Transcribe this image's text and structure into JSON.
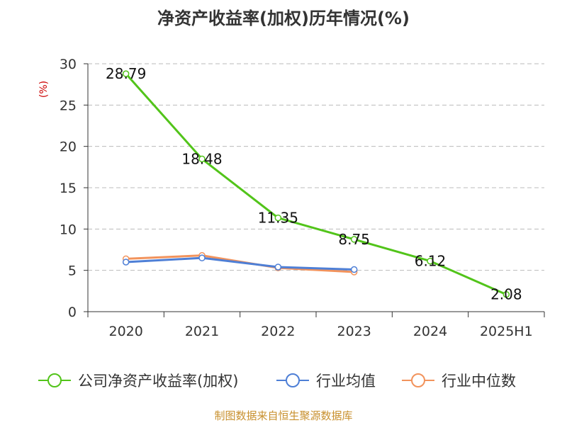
{
  "chart_data": {
    "type": "line",
    "title": "净资产收益率(加权)历年情况(%)",
    "ylabel": "(%)",
    "xlabel": "",
    "categories": [
      "2020",
      "2021",
      "2022",
      "2023",
      "2024",
      "2025H1"
    ],
    "ylim": [
      0,
      30
    ],
    "yticks": [
      0,
      5,
      10,
      15,
      20,
      25,
      30
    ],
    "grid": true,
    "legend_position": "bottom",
    "series": [
      {
        "name": "公司净资产收益率(加权)",
        "color": "#52c41a",
        "values": [
          28.79,
          18.48,
          11.35,
          8.75,
          6.12,
          2.08
        ],
        "data_labels": [
          "28.79",
          "18.48",
          "11.35",
          "8.75",
          "6.12",
          "2.08"
        ]
      },
      {
        "name": "行业均值",
        "color": "#4e7fd6",
        "values": [
          6.0,
          6.5,
          5.4,
          5.1,
          null,
          null
        ]
      },
      {
        "name": "行业中位数",
        "color": "#f2935c",
        "values": [
          6.4,
          6.8,
          5.3,
          4.8,
          null,
          null
        ]
      }
    ],
    "source": "制图数据来自恒生聚源数据库"
  },
  "colors": {
    "title": "#333333",
    "axis": "#333333",
    "grid": "#bbbbbb",
    "ylabel": "#cc0000",
    "source": "#c8902e"
  }
}
